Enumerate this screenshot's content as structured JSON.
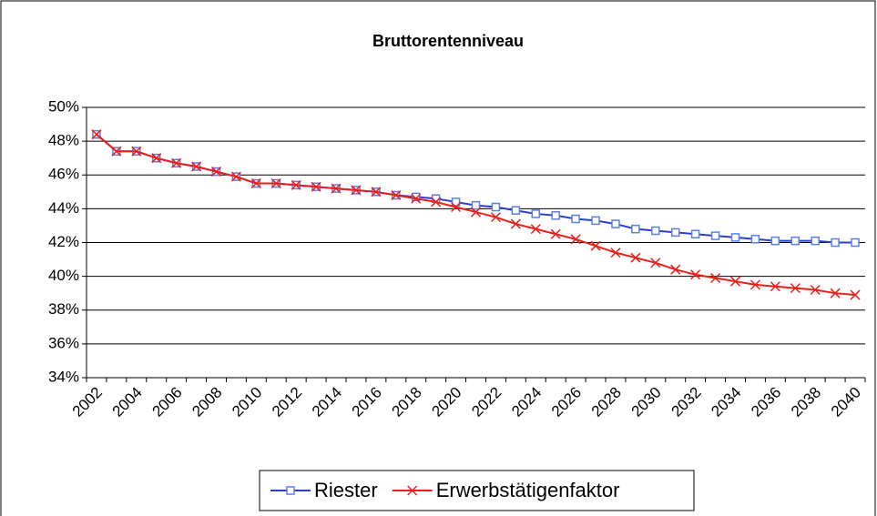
{
  "chart_data": {
    "type": "line",
    "title": "Bruttorentenniveau",
    "categories": [
      "2002",
      null,
      "2004",
      null,
      "2006",
      null,
      "2008",
      null,
      "2010",
      null,
      "2012",
      null,
      "2014",
      null,
      "2016",
      null,
      "2018",
      null,
      "2020",
      null,
      "2022",
      null,
      "2024",
      null,
      "2026",
      null,
      "2028",
      null,
      "2030",
      null,
      "2032",
      null,
      "2034",
      null,
      "2036",
      null,
      "2038",
      null,
      "2040"
    ],
    "series": [
      {
        "name": "Riester",
        "color": "#2a3fd1",
        "marker": "square",
        "values": [
          48.4,
          47.4,
          47.4,
          47.0,
          46.7,
          46.5,
          46.2,
          45.9,
          45.5,
          45.5,
          45.4,
          45.3,
          45.2,
          45.1,
          45.0,
          44.8,
          44.7,
          44.6,
          44.4,
          44.2,
          44.1,
          43.9,
          43.7,
          43.6,
          43.4,
          43.3,
          43.1,
          42.8,
          42.7,
          42.6,
          42.5,
          42.4,
          42.3,
          42.2,
          42.1,
          42.1,
          42.1,
          42.0,
          42.0
        ]
      },
      {
        "name": "Erwerbstätigenfaktor",
        "color": "#e8201c",
        "marker": "x",
        "values": [
          48.4,
          47.4,
          47.4,
          47.0,
          46.7,
          46.5,
          46.2,
          45.9,
          45.5,
          45.5,
          45.4,
          45.3,
          45.2,
          45.1,
          45.0,
          44.8,
          44.6,
          44.4,
          44.1,
          43.8,
          43.5,
          43.1,
          42.8,
          42.5,
          42.2,
          41.8,
          41.4,
          41.1,
          40.8,
          40.4,
          40.1,
          39.9,
          39.7,
          39.5,
          39.4,
          39.3,
          39.2,
          39.0,
          38.9
        ]
      }
    ],
    "ylim": [
      34,
      50
    ],
    "yticks": [
      {
        "value": 34,
        "label": "34%"
      },
      {
        "value": 36,
        "label": "36%"
      },
      {
        "value": 38,
        "label": "38%"
      },
      {
        "value": 40,
        "label": "40%"
      },
      {
        "value": 42,
        "label": "42%"
      },
      {
        "value": 44,
        "label": "44%"
      },
      {
        "value": 46,
        "label": "46%"
      },
      {
        "value": 48,
        "label": "48%"
      },
      {
        "value": 50,
        "label": "50%"
      }
    ],
    "grid": true,
    "legend": "bottom"
  }
}
